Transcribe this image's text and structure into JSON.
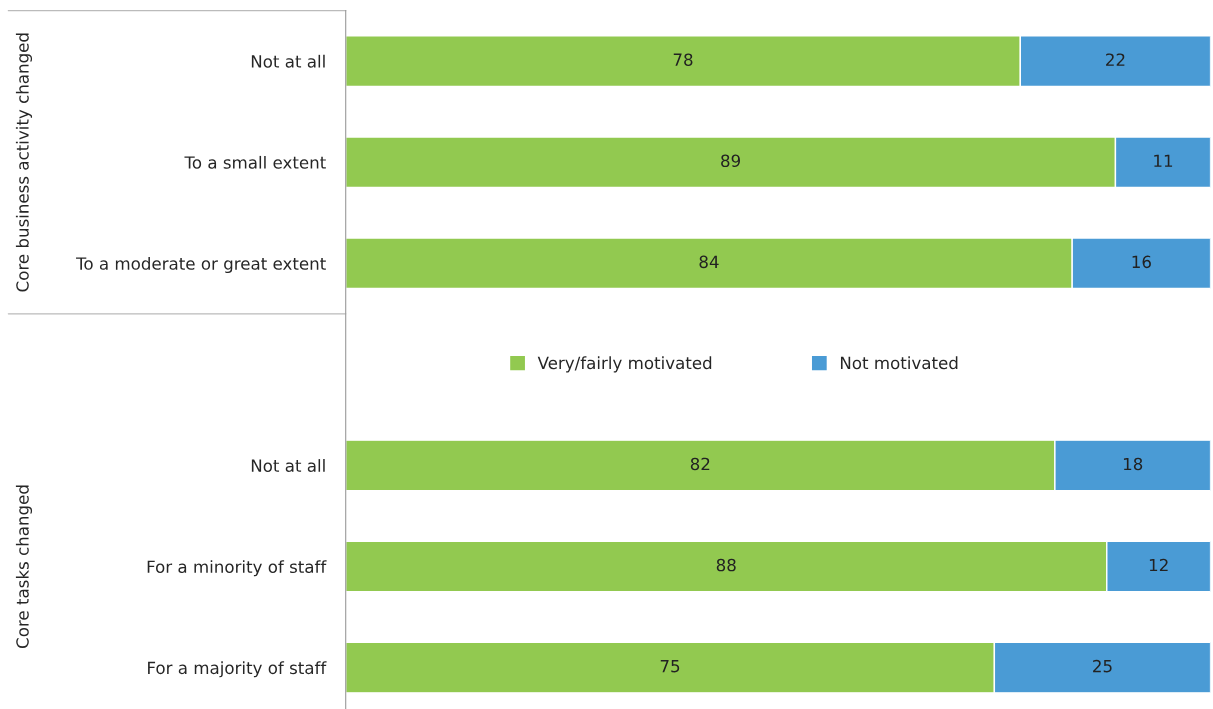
{
  "chart_data": {
    "type": "bar",
    "orientation": "horizontal",
    "stacked": true,
    "categories": [
      "Not at all",
      "To a small extent",
      "To a moderate or great extent",
      null,
      "Not at all",
      "For a minority of staff",
      "For a majority of staff"
    ],
    "series": [
      {
        "name": "Very/fairly motivated",
        "color": "#92c950",
        "values": [
          78,
          89,
          84,
          null,
          82,
          88,
          75
        ]
      },
      {
        "name": "Not motivated",
        "color": "#4a9bd5",
        "values": [
          22,
          11,
          16,
          null,
          18,
          12,
          25
        ]
      }
    ],
    "xlim": [
      0,
      100
    ],
    "tick_labels": "y",
    "data_labels": true,
    "legend": "center",
    "grid": false,
    "annotations": [
      "Core business activity changed",
      "Core tasks changed"
    ]
  }
}
